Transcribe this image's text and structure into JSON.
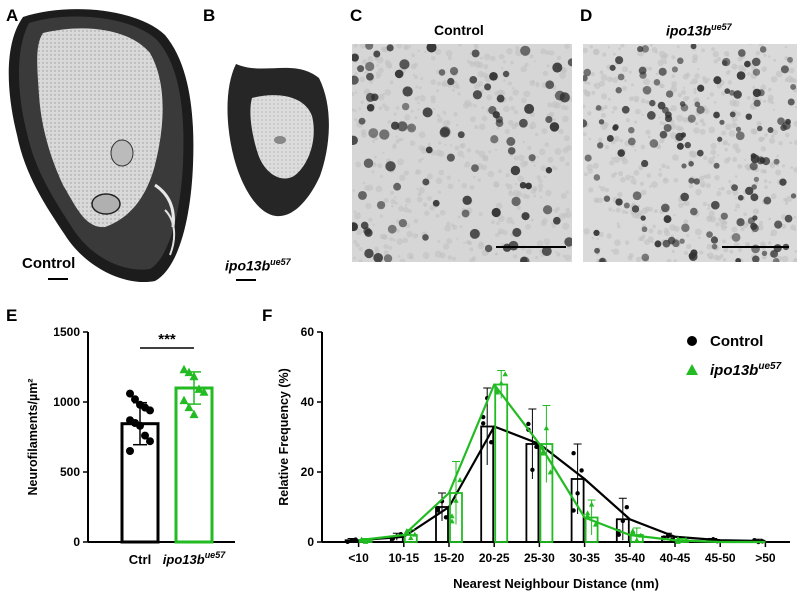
{
  "panels": {
    "A": {
      "letter": "A",
      "label": "Control"
    },
    "B": {
      "letter": "B",
      "label_base": "ipo13b",
      "label_sup": "ue57"
    },
    "C": {
      "letter": "C",
      "title": "Control"
    },
    "D": {
      "letter": "D",
      "title_base": "ipo13b",
      "title_sup": "ue57"
    },
    "E": {
      "letter": "E"
    },
    "F": {
      "letter": "F"
    }
  },
  "chart_data": [
    {
      "panel": "E",
      "type": "bar",
      "ylabel": "Neurofilaments/µm²",
      "ylim": [
        0,
        1500
      ],
      "yticks": [
        "0",
        "500",
        "1000",
        "1500"
      ],
      "categories": [
        "Ctrl",
        "ipo13b"
      ],
      "category_sup": [
        "",
        "ue57"
      ],
      "values": [
        845,
        1100
      ],
      "errors": [
        150,
        115
      ],
      "colors": [
        "#000000",
        "#22bb22"
      ],
      "points": [
        [
          1060,
          1020,
          980,
          960,
          940,
          870,
          850,
          830,
          760,
          720,
          650
        ],
        [
          1230,
          1210,
          1180,
          1090,
          1070,
          1010,
          960,
          910
        ]
      ],
      "significance": "***"
    },
    {
      "panel": "F",
      "type": "bar",
      "xlabel": "Nearest  Neighbour  Distance (nm)",
      "ylabel": "Relative  Frequency (%)",
      "ylim": [
        0,
        60
      ],
      "yticks": [
        "0",
        "20",
        "40",
        "60"
      ],
      "categories": [
        "<10",
        "10-15",
        "15-20",
        "20-25",
        "25-30",
        "30-35",
        "35-40",
        "40-45",
        "45-50",
        ">50"
      ],
      "legend": [
        {
          "name": "Control",
          "color": "#000000",
          "marker": "circle"
        },
        {
          "name_base": "ipo13b",
          "name_sup": "ue57",
          "color": "#22bb22",
          "marker": "triangle"
        }
      ],
      "series": [
        {
          "name": "Control",
          "values": [
            0.5,
            1.5,
            10,
            33,
            28,
            18,
            6.5,
            1.5,
            0.5,
            0.3
          ],
          "errors": [
            0.5,
            1,
            4,
            11,
            10,
            10,
            6,
            1,
            0.5,
            0.5
          ]
        },
        {
          "name": "ipo13b ue57",
          "values": [
            0.5,
            2,
            14,
            45,
            28,
            7,
            2,
            0.5,
            0,
            0
          ],
          "errors": [
            0.5,
            1.5,
            9,
            4,
            11,
            5,
            2,
            0.5,
            0,
            0
          ]
        }
      ]
    }
  ]
}
